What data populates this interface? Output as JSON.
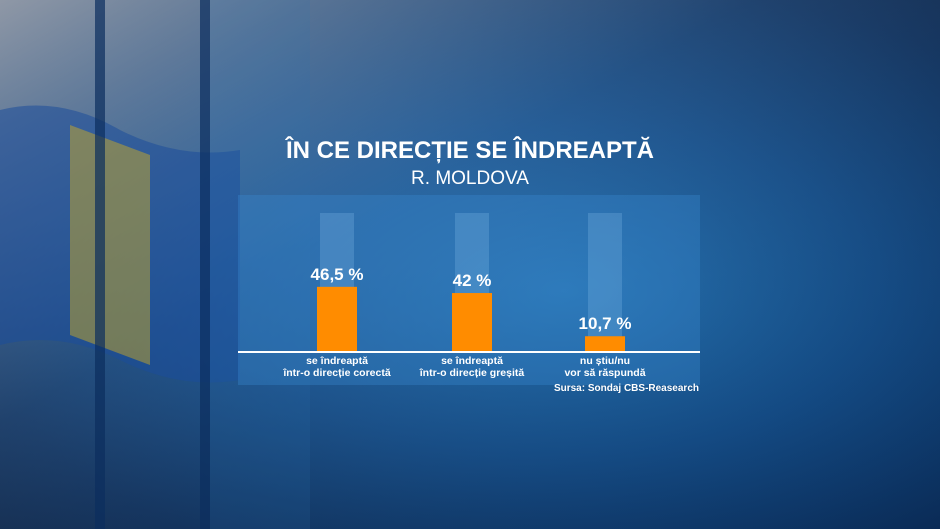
{
  "chart_data": {
    "type": "bar",
    "title": "ÎN CE DIRECȚIE SE ÎNDREAPTĂ",
    "subtitle": "R. MOLDOVA",
    "categories": [
      "se îndreaptă\nîntr-o direcție corectă",
      "se îndreaptă\nîntr-o direcție greșită",
      "nu știu/nu\nvor să răspundă"
    ],
    "values": [
      46.5,
      42,
      10.7
    ],
    "value_labels": [
      "46,5 %",
      "42 %",
      "10,7 %"
    ],
    "color": "#ff8c00",
    "ylim": [
      0,
      100
    ],
    "source": "Sursa: Sondaj CBS-Reasearch"
  }
}
